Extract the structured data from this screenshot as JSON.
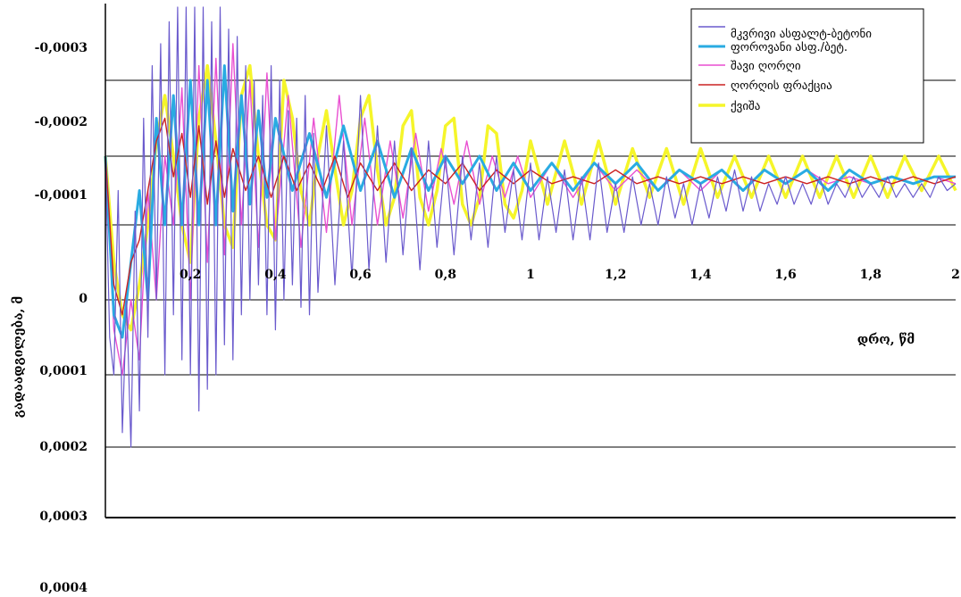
{
  "chart_data": {
    "type": "line",
    "title": "",
    "xlabel": "დრო, წმ",
    "ylabel": "გადაადგილება, მ",
    "xlim": [
      0,
      2
    ],
    "ylim": [
      -0.0004,
      0.0003
    ],
    "y_inverted": true,
    "grid": true,
    "legend_position": "top-right",
    "x_ticks": [
      {
        "value": 0.2,
        "label": "0,2"
      },
      {
        "value": 0.4,
        "label": "0,4"
      },
      {
        "value": 0.6,
        "label": "0,6"
      },
      {
        "value": 0.8,
        "label": "0,8"
      },
      {
        "value": 1.0,
        "label": "1"
      },
      {
        "value": 1.2,
        "label": "1,2"
      },
      {
        "value": 1.4,
        "label": "1,4"
      },
      {
        "value": 1.6,
        "label": "1,6"
      },
      {
        "value": 1.8,
        "label": "1,8"
      },
      {
        "value": 2.0,
        "label": "2"
      }
    ],
    "y_ticks": [
      {
        "value": -0.0003,
        "label": "-0,0003"
      },
      {
        "value": -0.0002,
        "label": "-0,0002"
      },
      {
        "value": -0.0001,
        "label": "-0,0001"
      },
      {
        "value": 0,
        "label": "0"
      },
      {
        "value": 0.0001,
        "label": "0,0001"
      },
      {
        "value": 0.0002,
        "label": "0,0002"
      },
      {
        "value": 0.0003,
        "label": "0,0003"
      },
      {
        "value": 0.0004,
        "label": "0,0004"
      }
    ],
    "series": [
      {
        "name": "მკვრივი ასფალტ-ბეტონი",
        "color": "#6a5acd",
        "x": [
          0,
          0.01,
          0.02,
          0.03,
          0.04,
          0.05,
          0.06,
          0.07,
          0.08,
          0.09,
          0.1,
          0.11,
          0.12,
          0.13,
          0.14,
          0.15,
          0.16,
          0.17,
          0.18,
          0.19,
          0.2,
          0.21,
          0.22,
          0.23,
          0.24,
          0.25,
          0.26,
          0.27,
          0.28,
          0.29,
          0.3,
          0.31,
          0.32,
          0.33,
          0.34,
          0.35,
          0.36,
          0.37,
          0.38,
          0.39,
          0.4,
          0.41,
          0.42,
          0.43,
          0.44,
          0.45,
          0.46,
          0.47,
          0.48,
          0.49,
          0.5,
          0.52,
          0.54,
          0.56,
          0.58,
          0.6,
          0.62,
          0.64,
          0.66,
          0.68,
          0.7,
          0.72,
          0.74,
          0.76,
          0.78,
          0.8,
          0.82,
          0.84,
          0.86,
          0.88,
          0.9,
          0.92,
          0.94,
          0.96,
          0.98,
          1.0,
          1.02,
          1.04,
          1.06,
          1.08,
          1.1,
          1.12,
          1.14,
          1.16,
          1.18,
          1.2,
          1.22,
          1.24,
          1.26,
          1.28,
          1.3,
          1.32,
          1.34,
          1.36,
          1.38,
          1.4,
          1.42,
          1.44,
          1.46,
          1.48,
          1.5,
          1.52,
          1.54,
          1.56,
          1.58,
          1.6,
          1.62,
          1.64,
          1.66,
          1.68,
          1.7,
          1.72,
          1.74,
          1.76,
          1.78,
          1.8,
          1.82,
          1.84,
          1.86,
          1.88,
          1.9,
          1.92,
          1.94,
          1.96,
          1.98,
          2.0
        ],
        "y": [
          -0.0001,
          0.00015,
          0.0002,
          -5e-05,
          0.00028,
          0.0001,
          0.0003,
          -2e-05,
          0.00025,
          -0.00015,
          0.00015,
          -0.00022,
          0.0001,
          -0.00025,
          0.0002,
          -0.00028,
          0.00012,
          -0.0003,
          0.00018,
          -0.00035,
          0.0002,
          -0.0003,
          0.00025,
          -0.0003,
          0.00022,
          -0.00028,
          0.0002,
          -0.00032,
          0.00016,
          -0.00027,
          0.00018,
          -0.00026,
          0.00012,
          -0.00022,
          0.0001,
          -0.0002,
          8e-05,
          -0.00018,
          0.00012,
          -0.00022,
          0.00014,
          -0.0002,
          0.0001,
          -0.00016,
          8e-05,
          -0.00015,
          0.00011,
          -0.00018,
          0.00012,
          -0.00013,
          9e-05,
          -0.00014,
          8e-05,
          -0.00012,
          7e-05,
          -0.00018,
          6e-05,
          -0.00014,
          5e-05,
          -0.00012,
          4e-05,
          -0.00011,
          6e-05,
          -0.00012,
          3e-05,
          -0.0001,
          4e-05,
          -0.0001,
          2e-05,
          -9e-05,
          3e-05,
          -0.0001,
          1e-05,
          -8e-05,
          2e-05,
          -9e-05,
          2e-05,
          -7e-05,
          1e-05,
          -8e-05,
          2e-05,
          -7e-05,
          2e-05,
          -9e-05,
          1e-05,
          -6e-05,
          1e-05,
          -7e-05,
          0.0,
          -6e-05,
          0.0,
          -7e-05,
          -1e-05,
          -6e-05,
          0.0,
          -6e-05,
          -1e-05,
          -7e-05,
          -2e-05,
          -8e-05,
          -2e-05,
          -7e-05,
          -2e-05,
          -6e-05,
          -3e-05,
          -7e-05,
          -3e-05,
          -6e-05,
          -3e-05,
          -7e-05,
          -3e-05,
          -6e-05,
          -4e-05,
          -7e-05,
          -4e-05,
          -6e-05,
          -4e-05,
          -7e-05,
          -4e-05,
          -6e-05,
          -4e-05,
          -6e-05,
          -4e-05,
          -7e-05,
          -5e-05,
          -6e-05
        ]
      },
      {
        "name": "ფოროვანი ასფ./ბეტ.",
        "color": "#29abe2",
        "x": [
          0,
          0.02,
          0.04,
          0.06,
          0.08,
          0.1,
          0.12,
          0.14,
          0.16,
          0.18,
          0.2,
          0.22,
          0.24,
          0.26,
          0.28,
          0.3,
          0.32,
          0.34,
          0.36,
          0.38,
          0.4,
          0.44,
          0.48,
          0.52,
          0.56,
          0.6,
          0.64,
          0.68,
          0.72,
          0.76,
          0.8,
          0.84,
          0.88,
          0.92,
          0.96,
          1.0,
          1.05,
          1.1,
          1.15,
          1.2,
          1.25,
          1.3,
          1.35,
          1.4,
          1.45,
          1.5,
          1.55,
          1.6,
          1.65,
          1.7,
          1.75,
          1.8,
          1.85,
          1.9,
          1.95,
          2.0
        ],
        "y": [
          -0.0001,
          0.00012,
          0.00015,
          5e-05,
          -5e-05,
          0.0001,
          -0.00015,
          0.0,
          -0.00018,
          0.0,
          -0.0002,
          0.0,
          -0.0002,
          0.0,
          -0.00022,
          -2e-05,
          -0.00018,
          -3e-05,
          -0.00016,
          -4e-05,
          -0.00015,
          -5e-05,
          -0.00013,
          -4e-05,
          -0.00014,
          -5e-05,
          -0.00012,
          -4e-05,
          -0.00011,
          -5e-05,
          -0.0001,
          -6e-05,
          -0.0001,
          -5e-05,
          -9e-05,
          -5e-05,
          -9e-05,
          -5e-05,
          -9e-05,
          -6e-05,
          -9e-05,
          -5e-05,
          -8e-05,
          -6e-05,
          -8e-05,
          -5e-05,
          -8e-05,
          -6e-05,
          -8e-05,
          -5e-05,
          -8e-05,
          -6e-05,
          -7e-05,
          -6e-05,
          -7e-05,
          -7e-05
        ]
      },
      {
        "name": "შავი ღორღი",
        "color": "#e94fd1",
        "x": [
          0,
          0.02,
          0.04,
          0.06,
          0.08,
          0.1,
          0.12,
          0.14,
          0.16,
          0.18,
          0.2,
          0.22,
          0.24,
          0.26,
          0.28,
          0.3,
          0.32,
          0.34,
          0.36,
          0.38,
          0.4,
          0.43,
          0.46,
          0.49,
          0.52,
          0.55,
          0.58,
          0.61,
          0.64,
          0.67,
          0.7,
          0.73,
          0.76,
          0.79,
          0.82,
          0.85,
          0.88,
          0.91,
          0.94,
          0.97,
          1.0,
          1.05,
          1.1,
          1.15,
          1.2,
          1.25,
          1.3,
          1.35,
          1.4,
          1.45,
          1.5,
          1.55,
          1.6,
          1.65,
          1.7,
          1.75,
          1.8,
          1.85,
          1.9,
          1.95,
          2.0
        ],
        "y": [
          -0.0001,
          0.00014,
          0.0002,
          0.0001,
          0.00018,
          -5e-05,
          0.0001,
          -0.0001,
          0.0,
          -0.00019,
          0.0001,
          -0.00022,
          5e-05,
          -0.00023,
          4e-05,
          -0.00025,
          0.0,
          -0.0002,
          3e-05,
          -0.00021,
          2e-05,
          -0.00018,
          3e-05,
          -0.00015,
          1e-05,
          -0.00018,
          0.0,
          -0.00015,
          0.0,
          -0.00012,
          -1e-05,
          -0.00013,
          -2e-05,
          -0.00011,
          -3e-05,
          -0.00012,
          -3e-05,
          -0.0001,
          -4e-05,
          -0.0001,
          -4e-05,
          -9e-05,
          -4e-05,
          -9e-05,
          -5e-05,
          -8e-05,
          -5e-05,
          -8e-05,
          -5e-05,
          -8e-05,
          -5e-05,
          -8e-05,
          -6e-05,
          -8e-05,
          -6e-05,
          -7e-05,
          -6e-05,
          -7e-05,
          -6e-05,
          -7e-05,
          -6e-05
        ]
      },
      {
        "name": "ღორღის ფრაქცია",
        "color": "#cc2222",
        "x": [
          0,
          0.02,
          0.04,
          0.06,
          0.08,
          0.1,
          0.12,
          0.14,
          0.16,
          0.18,
          0.2,
          0.22,
          0.24,
          0.26,
          0.28,
          0.3,
          0.33,
          0.36,
          0.39,
          0.42,
          0.45,
          0.48,
          0.51,
          0.54,
          0.57,
          0.6,
          0.64,
          0.68,
          0.72,
          0.76,
          0.8,
          0.84,
          0.88,
          0.92,
          0.96,
          1.0,
          1.05,
          1.1,
          1.15,
          1.2,
          1.25,
          1.3,
          1.35,
          1.4,
          1.45,
          1.5,
          1.55,
          1.6,
          1.65,
          1.7,
          1.75,
          1.8,
          1.85,
          1.9,
          1.95,
          2.0
        ],
        "y": [
          -0.0001,
          8e-05,
          0.00012,
          5e-05,
          2e-05,
          -5e-05,
          -0.00012,
          -0.00015,
          -7e-05,
          -0.00013,
          -4e-05,
          -0.00014,
          -3e-05,
          -0.00012,
          -4e-05,
          -0.00011,
          -5e-05,
          -0.0001,
          -4e-05,
          -0.0001,
          -5e-05,
          -9e-05,
          -5e-05,
          -0.0001,
          -4e-05,
          -9e-05,
          -5e-05,
          -9e-05,
          -5e-05,
          -8e-05,
          -6e-05,
          -9e-05,
          -5e-05,
          -8e-05,
          -6e-05,
          -8e-05,
          -6e-05,
          -7e-05,
          -6e-05,
          -8e-05,
          -6e-05,
          -7e-05,
          -6e-05,
          -7e-05,
          -6e-05,
          -7e-05,
          -6e-05,
          -7e-05,
          -6e-05,
          -7e-05,
          -6e-05,
          -7e-05,
          -6e-05,
          -7e-05,
          -6e-05,
          -7e-05
        ]
      },
      {
        "name": "ქვიშა",
        "color": "#f5f52a",
        "x": [
          0,
          0.02,
          0.04,
          0.06,
          0.08,
          0.1,
          0.12,
          0.14,
          0.16,
          0.18,
          0.2,
          0.22,
          0.24,
          0.26,
          0.28,
          0.3,
          0.32,
          0.34,
          0.36,
          0.38,
          0.4,
          0.42,
          0.44,
          0.46,
          0.48,
          0.5,
          0.52,
          0.54,
          0.56,
          0.58,
          0.6,
          0.62,
          0.64,
          0.66,
          0.68,
          0.7,
          0.72,
          0.74,
          0.76,
          0.78,
          0.8,
          0.82,
          0.84,
          0.86,
          0.88,
          0.9,
          0.92,
          0.94,
          0.96,
          0.98,
          1.0,
          1.04,
          1.08,
          1.12,
          1.16,
          1.2,
          1.24,
          1.28,
          1.32,
          1.36,
          1.4,
          1.44,
          1.48,
          1.52,
          1.56,
          1.6,
          1.64,
          1.68,
          1.72,
          1.76,
          1.8,
          1.84,
          1.88,
          1.92,
          1.96,
          2.0
        ],
        "y": [
          -0.0001,
          5e-05,
          0.00012,
          0.00014,
          8e-05,
          0.0,
          -0.00012,
          -0.00018,
          -0.0001,
          0.0,
          5e-05,
          -0.00015,
          -0.00022,
          -0.00012,
          0.0,
          3e-05,
          -0.00018,
          -0.00022,
          -0.0001,
          0.0,
          2e-05,
          -0.0002,
          -0.00015,
          -5e-05,
          0.0,
          -0.0001,
          -0.00016,
          -8e-05,
          0.0,
          -5e-05,
          -0.00015,
          -0.00018,
          -8e-05,
          0.0,
          -4e-05,
          -0.00014,
          -0.00016,
          -4e-05,
          0.0,
          -5e-05,
          -0.00014,
          -0.00015,
          -3e-05,
          0.0,
          -4e-05,
          -0.00014,
          -0.00013,
          -3e-05,
          -1e-05,
          -5e-05,
          -0.00012,
          -3e-05,
          -0.00012,
          -3e-05,
          -0.00012,
          -3e-05,
          -0.00011,
          -4e-05,
          -0.00011,
          -3e-05,
          -0.00011,
          -4e-05,
          -0.0001,
          -4e-05,
          -0.0001,
          -4e-05,
          -0.0001,
          -4e-05,
          -0.0001,
          -4e-05,
          -0.0001,
          -4e-05,
          -0.0001,
          -5e-05,
          -0.0001,
          -5e-05
        ]
      }
    ]
  }
}
